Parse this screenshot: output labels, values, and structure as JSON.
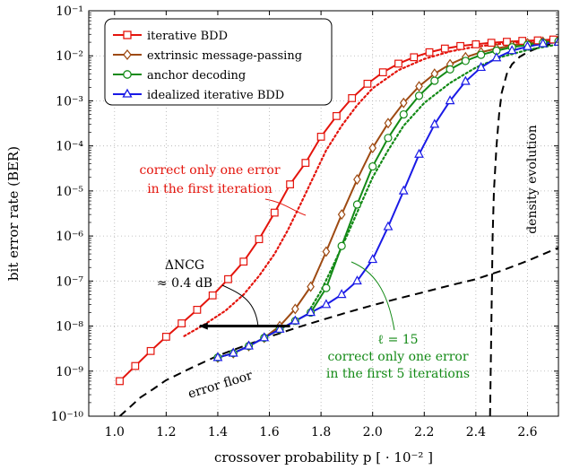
{
  "chart_data": {
    "type": "line",
    "xlabel": "crossover probability p [ · 10⁻² ]",
    "ylabel": "bit error rate (BER)",
    "xlim": [
      0.9,
      2.72
    ],
    "ylim_log10": [
      -10,
      -1
    ],
    "y_scale": "log",
    "x_ticks": [
      1.0,
      1.2,
      1.4,
      1.6,
      1.8,
      2.0,
      2.2,
      2.4,
      2.6
    ],
    "x_tick_labels": [
      "1.0",
      "1.2",
      "1.4",
      "1.6",
      "1.8",
      "2.0",
      "2.2",
      "2.4",
      "2.6"
    ],
    "y_tick_exponents": [
      -10,
      -9,
      -8,
      -7,
      -6,
      -5,
      -4,
      -3,
      -2,
      -1
    ],
    "y_tick_labels": [
      "10⁻¹⁰",
      "10⁻⁹",
      "10⁻⁸",
      "10⁻⁷",
      "10⁻⁶",
      "10⁻⁵",
      "10⁻⁴",
      "10⁻³",
      "10⁻²",
      "10⁻¹"
    ],
    "grid": true,
    "legend_position": "top-left",
    "colors": {
      "red": "#e4140c",
      "brown": "#9e4a12",
      "green": "#138a16",
      "blue": "#1a1ae6",
      "black": "#000000"
    },
    "series": [
      {
        "name": "iterative BDD",
        "color": "#e4140c",
        "marker": "square",
        "x": [
          1.02,
          1.08,
          1.14,
          1.2,
          1.26,
          1.32,
          1.38,
          1.44,
          1.5,
          1.56,
          1.62,
          1.68,
          1.74,
          1.8,
          1.86,
          1.92,
          1.98,
          2.04,
          2.1,
          2.16,
          2.22,
          2.28,
          2.34,
          2.4,
          2.46,
          2.52,
          2.58,
          2.64,
          2.7
        ],
        "y": [
          6e-10,
          1.3e-09,
          2.8e-09,
          5.8e-09,
          1.15e-08,
          2.3e-08,
          4.8e-08,
          1.1e-07,
          2.7e-07,
          8.5e-07,
          3.3e-06,
          1.4e-05,
          4.2e-05,
          0.00016,
          0.00046,
          0.00115,
          0.0024,
          0.0043,
          0.0067,
          0.0093,
          0.012,
          0.0145,
          0.0165,
          0.018,
          0.0195,
          0.0205,
          0.0215,
          0.022,
          0.023
        ]
      },
      {
        "name": "extrinsic message-passing",
        "color": "#9e4a12",
        "marker": "diamond",
        "x": [
          1.4,
          1.46,
          1.52,
          1.58,
          1.64,
          1.7,
          1.76,
          1.82,
          1.88,
          1.94,
          2.0,
          2.06,
          2.12,
          2.18,
          2.24,
          2.3,
          2.36,
          2.42,
          2.48,
          2.54,
          2.6,
          2.66,
          2.72
        ],
        "y": [
          2e-09,
          2.5e-09,
          3.6e-09,
          5.5e-09,
          1e-08,
          2.4e-08,
          7.5e-08,
          4.5e-07,
          3e-06,
          1.8e-05,
          9e-05,
          0.00032,
          0.0009,
          0.0021,
          0.004,
          0.0065,
          0.0093,
          0.012,
          0.0145,
          0.017,
          0.019,
          0.0205,
          0.022
        ]
      },
      {
        "name": "anchor decoding",
        "color": "#138a16",
        "marker": "circle",
        "x": [
          1.4,
          1.46,
          1.52,
          1.58,
          1.64,
          1.7,
          1.76,
          1.82,
          1.88,
          1.94,
          2.0,
          2.06,
          2.12,
          2.18,
          2.24,
          2.3,
          2.36,
          2.42,
          2.48,
          2.54,
          2.6,
          2.66,
          2.72
        ],
        "y": [
          2e-09,
          2.5e-09,
          3.6e-09,
          5.5e-09,
          8.5e-09,
          1.3e-08,
          2e-08,
          7e-08,
          6e-07,
          5e-06,
          3.5e-05,
          0.00015,
          0.0005,
          0.0013,
          0.0028,
          0.005,
          0.0077,
          0.0105,
          0.013,
          0.0155,
          0.0175,
          0.0195,
          0.021
        ]
      },
      {
        "name": "idealized iterative BDD",
        "color": "#1a1ae6",
        "marker": "triangle",
        "x": [
          1.4,
          1.46,
          1.52,
          1.58,
          1.64,
          1.7,
          1.76,
          1.82,
          1.88,
          1.94,
          2.0,
          2.06,
          2.12,
          2.18,
          2.24,
          2.3,
          2.36,
          2.42,
          2.48,
          2.54,
          2.6,
          2.66,
          2.72
        ],
        "y": [
          2e-09,
          2.5e-09,
          3.6e-09,
          5.5e-09,
          8.5e-09,
          1.3e-08,
          2e-08,
          3e-08,
          5e-08,
          1e-07,
          3e-07,
          1.6e-06,
          1e-05,
          6.5e-05,
          0.0003,
          0.001,
          0.0027,
          0.0055,
          0.009,
          0.013,
          0.016,
          0.0185,
          0.02
        ]
      }
    ],
    "dotted_curves": [
      {
        "color": "#e4140c",
        "x": [
          1.27,
          1.35,
          1.43,
          1.5,
          1.56,
          1.62,
          1.67,
          1.72,
          1.77,
          1.82,
          1.88,
          1.94,
          2.0,
          2.1,
          2.2,
          2.3,
          2.4,
          2.5,
          2.6,
          2.72
        ],
        "y": [
          6e-09,
          1.1e-08,
          2.2e-08,
          5e-08,
          1.3e-07,
          4e-07,
          1.3e-06,
          5e-06,
          2e-05,
          8e-05,
          0.00028,
          0.0008,
          0.0019,
          0.0048,
          0.0085,
          0.0125,
          0.016,
          0.0185,
          0.0205,
          0.0225
        ]
      },
      {
        "color": "#138a16",
        "x": [
          1.76,
          1.8,
          1.85,
          1.9,
          1.95,
          2.0,
          2.06,
          2.12,
          2.2,
          2.3,
          2.4,
          2.5,
          2.6,
          2.72
        ],
        "y": [
          2.5e-08,
          6e-08,
          2.4e-07,
          1e-06,
          4.5e-06,
          2e-05,
          8e-05,
          0.00028,
          0.0009,
          0.0025,
          0.0055,
          0.0095,
          0.0135,
          0.018
        ]
      }
    ],
    "dashed_curves": [
      {
        "name": "error floor",
        "color": "#000000",
        "x": [
          1.02,
          1.06,
          1.1,
          1.15,
          1.2,
          1.3,
          1.4,
          1.5,
          1.6,
          1.7,
          1.8,
          1.9,
          2.0,
          2.1,
          2.2,
          2.3,
          2.4,
          2.5,
          2.6,
          2.72
        ],
        "y": [
          1e-10,
          1.6e-10,
          2.6e-10,
          4e-10,
          6.3e-10,
          1.2e-09,
          2.2e-09,
          3.6e-09,
          5.8e-09,
          9e-09,
          1.35e-08,
          2e-08,
          2.9e-08,
          4.1e-08,
          5.7e-08,
          8e-08,
          1.1e-07,
          1.7e-07,
          2.8e-07,
          5.5e-07
        ]
      },
      {
        "name": "density evolution",
        "color": "#000000",
        "x": [
          2.455,
          2.46,
          2.465,
          2.47,
          2.48,
          2.49,
          2.5,
          2.52,
          2.54,
          2.57,
          2.6,
          2.64,
          2.68,
          2.72
        ],
        "y": [
          1e-10,
          1e-08,
          1e-06,
          1e-05,
          0.0001,
          0.0005,
          0.0015,
          0.004,
          0.0065,
          0.0095,
          0.012,
          0.015,
          0.0175,
          0.0195
        ]
      }
    ],
    "annotations": {
      "red_note_line1": "correct only one error",
      "red_note_line2": "in the first iteration",
      "delta_ncg_line1": "ΔNCG",
      "delta_ncg_line2": "≈ 0.4 dB",
      "ell_label": "ℓ = 15",
      "green_note_line1": "correct only one error",
      "green_note_line2": "in the first 5 iterations",
      "error_floor_label": "error floor",
      "density_evolution_label": "density evolution",
      "arrow": {
        "x_from": 1.68,
        "x_to": 1.33,
        "y": 1e-08
      }
    }
  }
}
